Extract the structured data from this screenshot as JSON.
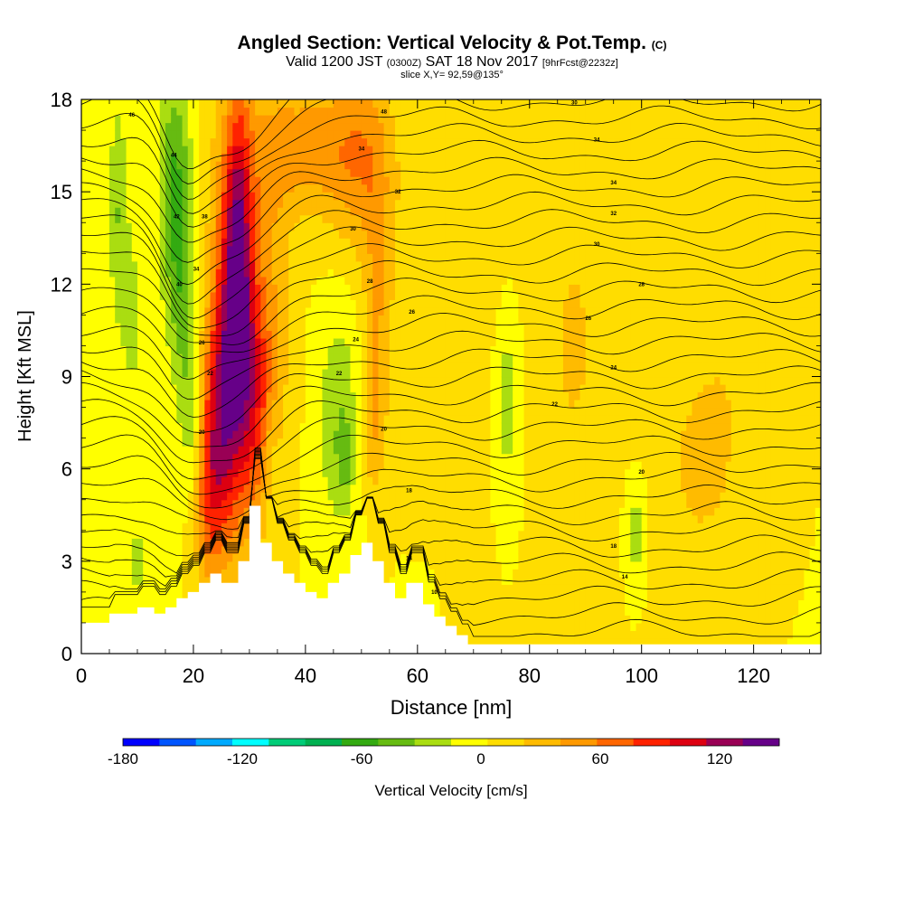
{
  "header": {
    "title": "Angled Section: Vertical Velocity & Pot.Temp.",
    "title_units": "(C)",
    "valid_prefix": "Valid 1200 JST",
    "valid_utc": "(0300Z)",
    "valid_date": "SAT 18 Nov 2017",
    "valid_fcst": "[9hrFcst@2232z]",
    "slice": "slice X,Y= 92,59@135°"
  },
  "chart_data": {
    "type": "heatmap",
    "xlabel": "Distance [nm]",
    "ylabel": "Height [Kft MSL]",
    "xlim": [
      0,
      132
    ],
    "ylim": [
      0,
      18
    ],
    "x_ticks": [
      0,
      20,
      40,
      60,
      80,
      100,
      120
    ],
    "y_ticks": [
      0,
      3,
      6,
      9,
      12,
      15,
      18
    ],
    "terrain": [
      [
        0,
        1
      ],
      [
        5,
        1
      ],
      [
        5,
        1.3
      ],
      [
        10,
        1.3
      ],
      [
        10,
        1.5
      ],
      [
        13,
        1.5
      ],
      [
        13,
        1.3
      ],
      [
        15,
        1.3
      ],
      [
        15,
        1.5
      ],
      [
        17,
        1.5
      ],
      [
        17,
        1.8
      ],
      [
        19,
        1.8
      ],
      [
        19,
        2.0
      ],
      [
        21,
        2.0
      ],
      [
        21,
        2.3
      ],
      [
        23,
        2.3
      ],
      [
        23,
        2.6
      ],
      [
        25,
        2.6
      ],
      [
        25,
        2.3
      ],
      [
        28,
        2.3
      ],
      [
        28,
        3.0
      ],
      [
        30,
        3.0
      ],
      [
        30,
        4.8
      ],
      [
        32,
        4.8
      ],
      [
        32,
        3.6
      ],
      [
        34,
        3.6
      ],
      [
        34,
        3.0
      ],
      [
        36,
        3.0
      ],
      [
        36,
        2.6
      ],
      [
        38,
        2.6
      ],
      [
        38,
        2.3
      ],
      [
        40,
        2.3
      ],
      [
        40,
        2.0
      ],
      [
        42,
        2.0
      ],
      [
        42,
        1.8
      ],
      [
        44,
        1.8
      ],
      [
        44,
        2.3
      ],
      [
        46,
        2.3
      ],
      [
        46,
        2.6
      ],
      [
        48,
        2.6
      ],
      [
        48,
        3.2
      ],
      [
        50,
        3.2
      ],
      [
        50,
        3.6
      ],
      [
        52,
        3.6
      ],
      [
        52,
        3.0
      ],
      [
        54,
        3.0
      ],
      [
        54,
        2.3
      ],
      [
        56,
        2.3
      ],
      [
        56,
        1.8
      ],
      [
        58,
        1.8
      ],
      [
        58,
        2.3
      ],
      [
        61,
        2.3
      ],
      [
        61,
        1.6
      ],
      [
        63,
        1.6
      ],
      [
        63,
        1.2
      ],
      [
        65,
        1.2
      ],
      [
        65,
        0.9
      ],
      [
        67,
        0.9
      ],
      [
        67,
        0.6
      ],
      [
        69,
        0.6
      ],
      [
        69,
        0.3
      ],
      [
        132,
        0.3
      ]
    ],
    "velocity_features": [
      {
        "x": 27.5,
        "y": 10.5,
        "sx": 2.8,
        "sy": 4.2,
        "v": 125
      },
      {
        "x": 28.0,
        "y": 14.5,
        "sx": 1.6,
        "sy": 3.2,
        "v": 50
      },
      {
        "x": 24.0,
        "y": 7.0,
        "sx": 2.2,
        "sy": 2.6,
        "v": 70
      },
      {
        "x": 22.5,
        "y": 4.5,
        "sx": 1.8,
        "sy": 1.8,
        "v": 35
      },
      {
        "x": 31.5,
        "y": 8.0,
        "sx": 2.6,
        "sy": 2.5,
        "v": 45
      },
      {
        "x": 34.0,
        "y": 12.0,
        "sx": 2.6,
        "sy": 4.0,
        "v": 25
      },
      {
        "x": 40.0,
        "y": 16.5,
        "sx": 7.0,
        "sy": 1.6,
        "v": 45
      },
      {
        "x": 50.0,
        "y": 16.0,
        "sx": 4.0,
        "sy": 2.2,
        "v": 40
      },
      {
        "x": 53.0,
        "y": 11.5,
        "sx": 1.8,
        "sy": 3.2,
        "v": 35
      },
      {
        "x": 52.0,
        "y": 7.5,
        "sx": 1.4,
        "sy": 1.6,
        "v": 30
      },
      {
        "x": 16.5,
        "y": 15.0,
        "sx": 2.0,
        "sy": 3.0,
        "v": -55
      },
      {
        "x": 18.5,
        "y": 11.0,
        "sx": 1.6,
        "sy": 3.0,
        "v": -35
      },
      {
        "x": 20.0,
        "y": 7.5,
        "sx": 1.1,
        "sy": 1.8,
        "v": -25
      },
      {
        "x": 6.5,
        "y": 14.5,
        "sx": 1.2,
        "sy": 2.6,
        "v": -35
      },
      {
        "x": 9.0,
        "y": 11.0,
        "sx": 1.4,
        "sy": 2.2,
        "v": -25
      },
      {
        "x": 10.0,
        "y": 3.0,
        "sx": 1.0,
        "sy": 0.9,
        "v": -30
      },
      {
        "x": 46.0,
        "y": 7.5,
        "sx": 2.6,
        "sy": 2.6,
        "v": -35
      },
      {
        "x": 47.0,
        "y": 6.3,
        "sx": 0.8,
        "sy": 0.8,
        "v": -25
      },
      {
        "x": 34.0,
        "y": 6.5,
        "sx": 1.0,
        "sy": 1.2,
        "v": -20
      },
      {
        "x": 76.0,
        "y": 8.5,
        "sx": 2.0,
        "sy": 2.6,
        "v": -35
      },
      {
        "x": 99.0,
        "y": 4.0,
        "sx": 1.3,
        "sy": 1.2,
        "v": -30
      },
      {
        "x": 59.0,
        "y": 12.0,
        "sx": 2.0,
        "sy": 3.2,
        "v": 15
      },
      {
        "x": 73.0,
        "y": 12.0,
        "sx": 5.0,
        "sy": 5.0,
        "v": 15
      },
      {
        "x": 88.0,
        "y": 10.0,
        "sx": 5.0,
        "sy": 5.0,
        "v": 20
      },
      {
        "x": 110.0,
        "y": 6.0,
        "sx": 6.0,
        "sy": 3.0,
        "v": 20
      },
      {
        "x": 118.0,
        "y": 13.0,
        "sx": 6.0,
        "sy": 5.0,
        "v": 15
      }
    ],
    "theta_labels": [
      {
        "x": 9,
        "y": 17.5,
        "v": "46"
      },
      {
        "x": 16.5,
        "y": 16.2,
        "v": "44"
      },
      {
        "x": 17,
        "y": 14.2,
        "v": "42"
      },
      {
        "x": 22,
        "y": 14.2,
        "v": "38"
      },
      {
        "x": 20.5,
        "y": 12.5,
        "v": "34"
      },
      {
        "x": 17.5,
        "y": 12.0,
        "v": "40"
      },
      {
        "x": 21.5,
        "y": 10.1,
        "v": "26"
      },
      {
        "x": 23.0,
        "y": 9.1,
        "v": "22"
      },
      {
        "x": 21.5,
        "y": 7.2,
        "v": "20"
      },
      {
        "x": 54,
        "y": 17.6,
        "v": "48"
      },
      {
        "x": 50,
        "y": 16.4,
        "v": "34"
      },
      {
        "x": 56.5,
        "y": 15.0,
        "v": "32"
      },
      {
        "x": 48.5,
        "y": 13.8,
        "v": "30"
      },
      {
        "x": 51.5,
        "y": 12.1,
        "v": "28"
      },
      {
        "x": 59,
        "y": 11.1,
        "v": "26"
      },
      {
        "x": 49,
        "y": 10.2,
        "v": "24"
      },
      {
        "x": 46,
        "y": 9.1,
        "v": "22"
      },
      {
        "x": 54,
        "y": 7.3,
        "v": "20"
      },
      {
        "x": 58.5,
        "y": 5.3,
        "v": "18"
      },
      {
        "x": 58.5,
        "y": 3.1,
        "v": "14"
      },
      {
        "x": 63,
        "y": 2.0,
        "v": "10"
      },
      {
        "x": 88,
        "y": 17.9,
        "v": "30"
      },
      {
        "x": 92,
        "y": 16.7,
        "v": "34"
      },
      {
        "x": 95,
        "y": 15.3,
        "v": "34"
      },
      {
        "x": 95,
        "y": 14.3,
        "v": "32"
      },
      {
        "x": 92,
        "y": 13.3,
        "v": "30"
      },
      {
        "x": 100,
        "y": 12.0,
        "v": "28"
      },
      {
        "x": 90.5,
        "y": 10.9,
        "v": "26"
      },
      {
        "x": 95,
        "y": 9.3,
        "v": "24"
      },
      {
        "x": 84.5,
        "y": 8.1,
        "v": "22"
      },
      {
        "x": 100,
        "y": 5.9,
        "v": "20"
      },
      {
        "x": 95,
        "y": 3.5,
        "v": "18"
      },
      {
        "x": 97,
        "y": 2.5,
        "v": "14"
      }
    ]
  },
  "colorbar": {
    "label": "Vertical Velocity [cm/s]",
    "tick_labels": [
      "-180",
      "-120",
      "-60",
      "0",
      "60",
      "120"
    ],
    "tick_values": [
      -180,
      -120,
      -60,
      0,
      60,
      120
    ],
    "range": [
      -180,
      150
    ],
    "colors": [
      "#0000ff",
      "#0055ff",
      "#00aaff",
      "#00ffff",
      "#00cc77",
      "#00b050",
      "#33aa11",
      "#66bb11",
      "#aadd11",
      "#ffff00",
      "#ffdd00",
      "#ffbb00",
      "#ff9900",
      "#ff6600",
      "#ff2200",
      "#dd0011",
      "#990055",
      "#660088"
    ]
  }
}
